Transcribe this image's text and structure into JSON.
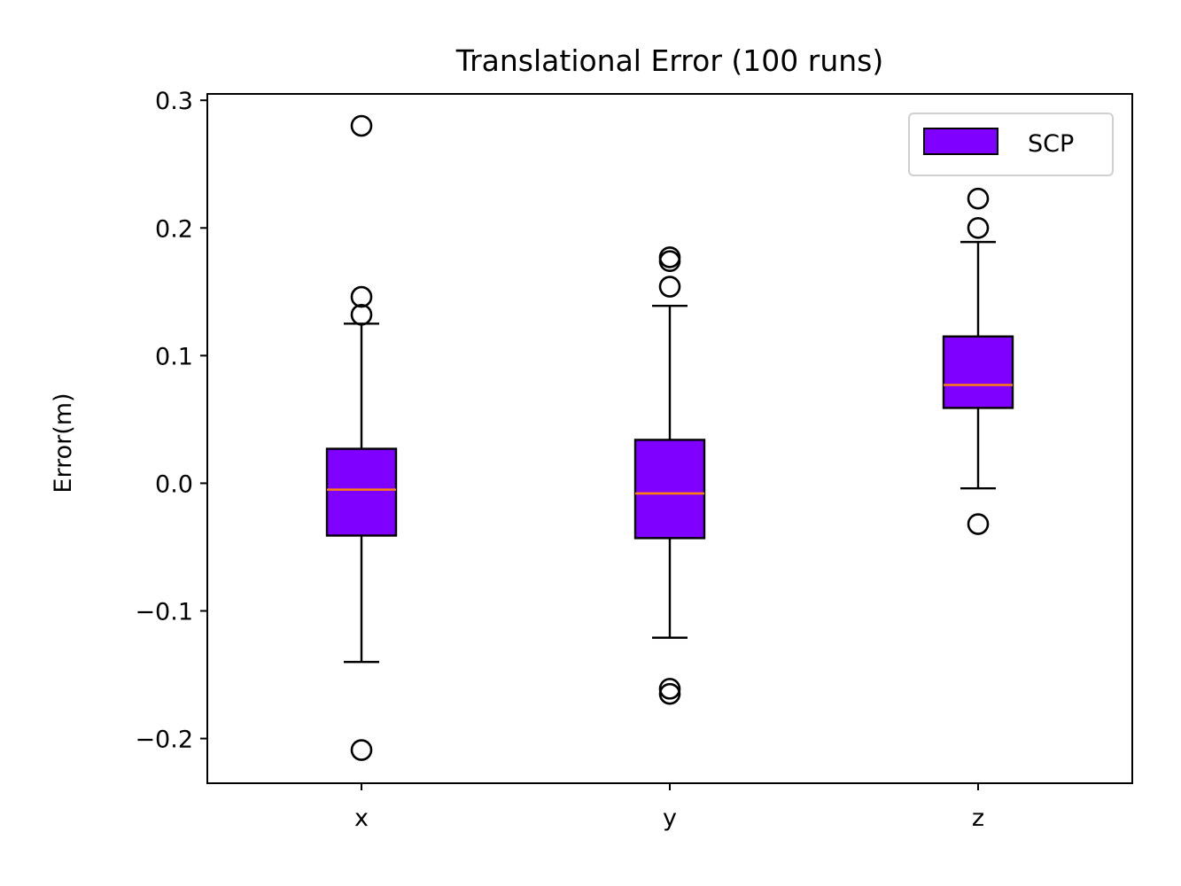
{
  "chart_data": {
    "type": "boxplot",
    "title": "Translational Error (100 runs)",
    "xlabel": "",
    "ylabel": "Error(m)",
    "categories": [
      "x",
      "y",
      "z"
    ],
    "ylim": [
      -0.235,
      0.305
    ],
    "yticks": [
      -0.2,
      -0.1,
      0.0,
      0.1,
      0.2,
      0.3
    ],
    "ytick_labels": [
      "−0.2",
      "−0.1",
      "0.0",
      "0.1",
      "0.2",
      "0.3"
    ],
    "grid": false,
    "legend": {
      "position": "top-right",
      "entries": [
        "SCP"
      ]
    },
    "series": [
      {
        "name": "SCP",
        "color": "#7f00ff",
        "median_color": "#ff7f0e",
        "boxes": [
          {
            "category": "x",
            "whisker_low": -0.14,
            "q1": -0.041,
            "median": -0.005,
            "q3": 0.027,
            "whisker_high": 0.125,
            "outliers": [
              0.28,
              0.146,
              0.132,
              -0.209
            ]
          },
          {
            "category": "y",
            "whisker_low": -0.121,
            "q1": -0.043,
            "median": -0.008,
            "q3": 0.034,
            "whisker_high": 0.139,
            "outliers": [
              0.177,
              0.174,
              0.154,
              -0.161,
              -0.165
            ]
          },
          {
            "category": "z",
            "whisker_low": -0.004,
            "q1": 0.059,
            "median": 0.077,
            "q3": 0.115,
            "whisker_high": 0.189,
            "outliers": [
              0.223,
              0.2,
              -0.032
            ]
          }
        ]
      }
    ]
  }
}
